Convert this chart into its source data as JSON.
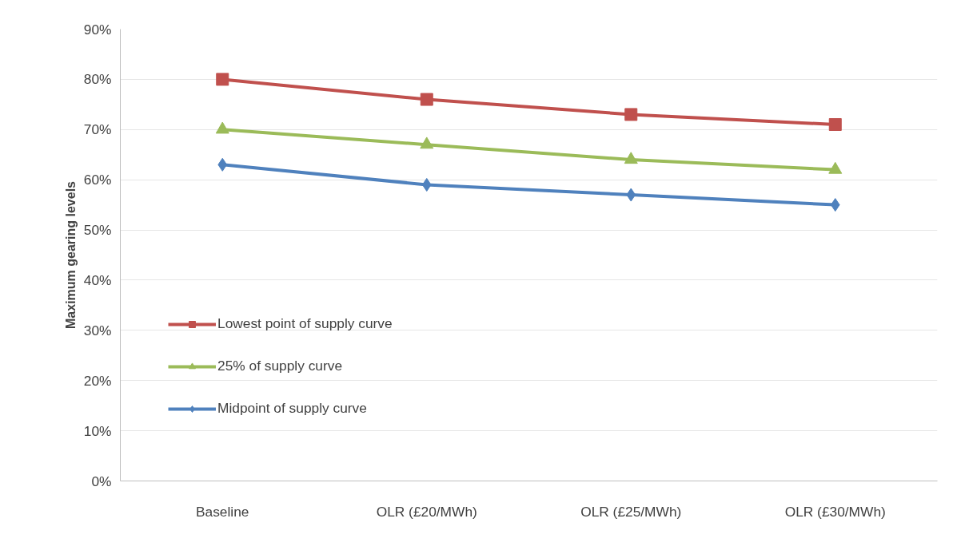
{
  "chart_data": {
    "type": "line",
    "ylabel": "Maximum gearing levels",
    "categories": [
      "Baseline",
      "OLR (£20/MWh)",
      "OLR (£25/MWh)",
      "OLR (£30/MWh)"
    ],
    "series": [
      {
        "name": "Lowest point of supply curve",
        "color": "#c0504d",
        "marker": "square",
        "values": [
          80,
          76,
          73,
          71
        ]
      },
      {
        "name": "25% of supply curve",
        "color": "#9bbb59",
        "marker": "triangle",
        "values": [
          70,
          67,
          64,
          62
        ]
      },
      {
        "name": "Midpoint of supply curve",
        "color": "#4f81bd",
        "marker": "diamond",
        "values": [
          63,
          59,
          57,
          55
        ]
      }
    ],
    "ylim": [
      0,
      90
    ],
    "yticks": [
      {
        "value": 0,
        "label": "0%"
      },
      {
        "value": 10,
        "label": "10%"
      },
      {
        "value": 20,
        "label": "20%"
      },
      {
        "value": 30,
        "label": "30%"
      },
      {
        "value": 40,
        "label": "40%"
      },
      {
        "value": 50,
        "label": "50%"
      },
      {
        "value": 60,
        "label": "60%"
      },
      {
        "value": 70,
        "label": "70%"
      },
      {
        "value": 80,
        "label": "80%"
      },
      {
        "value": 90,
        "label": "90%"
      }
    ],
    "grid": "y",
    "legend": "left",
    "line_style": "solid"
  }
}
